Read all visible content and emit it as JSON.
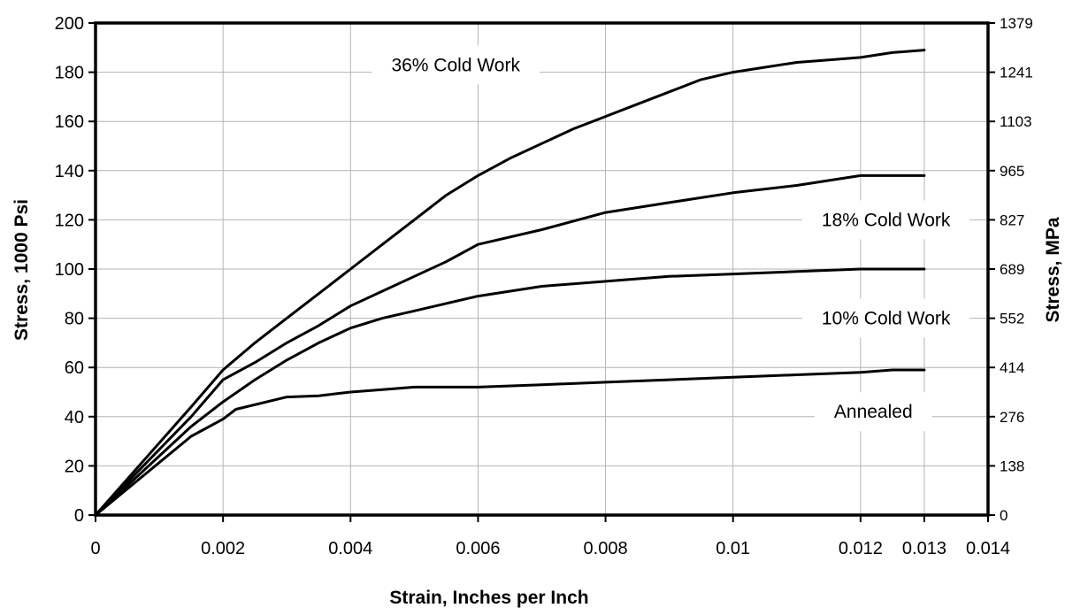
{
  "chart_data": {
    "type": "line",
    "xlabel": "Strain, Inches per Inch",
    "ylabel": "Stress, 1000 Psi",
    "y2label": "Stress, MPa",
    "xlim": [
      0,
      0.014
    ],
    "ylim": [
      0,
      200
    ],
    "grid": true,
    "x_ticks": [
      "0",
      "0.002",
      "0.004",
      "0.006",
      "0.008",
      "0.01",
      "0.012",
      "0.013",
      "0.014"
    ],
    "x_tick_values": [
      0,
      0.002,
      0.004,
      0.006,
      0.008,
      0.01,
      0.012,
      0.013,
      0.014
    ],
    "y_ticks": [
      "0",
      "20",
      "40",
      "60",
      "80",
      "100",
      "120",
      "140",
      "160",
      "180",
      "200"
    ],
    "y_tick_values": [
      0,
      20,
      40,
      60,
      80,
      100,
      120,
      140,
      160,
      180,
      200
    ],
    "y2_ticks": [
      "0",
      "138",
      "276",
      "414",
      "552",
      "689",
      "827",
      "965",
      "1103",
      "1241",
      "1379"
    ],
    "series": [
      {
        "name": "36% Cold Work",
        "label_at": [
          0.00565,
          183
        ],
        "points": [
          [
            0,
            0
          ],
          [
            0.0015,
            44
          ],
          [
            0.002,
            59
          ],
          [
            0.0025,
            70
          ],
          [
            0.003,
            80
          ],
          [
            0.0035,
            90
          ],
          [
            0.004,
            100
          ],
          [
            0.0045,
            110
          ],
          [
            0.005,
            120
          ],
          [
            0.0055,
            130
          ],
          [
            0.006,
            138
          ],
          [
            0.0065,
            145
          ],
          [
            0.007,
            151
          ],
          [
            0.0075,
            157
          ],
          [
            0.008,
            162
          ],
          [
            0.0085,
            167
          ],
          [
            0.009,
            172
          ],
          [
            0.0095,
            177
          ],
          [
            0.01,
            180
          ],
          [
            0.0105,
            182
          ],
          [
            0.011,
            184
          ],
          [
            0.0115,
            185
          ],
          [
            0.012,
            186
          ],
          [
            0.0125,
            188
          ],
          [
            0.013,
            189
          ]
        ]
      },
      {
        "name": "18% Cold Work",
        "label_at": [
          0.0124,
          120
        ],
        "points": [
          [
            0,
            0
          ],
          [
            0.0015,
            40
          ],
          [
            0.002,
            55
          ],
          [
            0.0025,
            62
          ],
          [
            0.003,
            70
          ],
          [
            0.0035,
            77
          ],
          [
            0.004,
            85
          ],
          [
            0.0045,
            91
          ],
          [
            0.005,
            97
          ],
          [
            0.0055,
            103
          ],
          [
            0.006,
            110
          ],
          [
            0.007,
            116
          ],
          [
            0.008,
            123
          ],
          [
            0.009,
            127
          ],
          [
            0.01,
            131
          ],
          [
            0.011,
            134
          ],
          [
            0.012,
            138
          ],
          [
            0.013,
            138
          ]
        ]
      },
      {
        "name": "10% Cold Work",
        "label_at": [
          0.0124,
          80
        ],
        "points": [
          [
            0,
            0
          ],
          [
            0.0015,
            36
          ],
          [
            0.002,
            46
          ],
          [
            0.0025,
            55
          ],
          [
            0.003,
            63
          ],
          [
            0.0035,
            70
          ],
          [
            0.004,
            76
          ],
          [
            0.0045,
            80
          ],
          [
            0.005,
            83
          ],
          [
            0.0055,
            86
          ],
          [
            0.006,
            89
          ],
          [
            0.007,
            93
          ],
          [
            0.008,
            95
          ],
          [
            0.009,
            97
          ],
          [
            0.01,
            98
          ],
          [
            0.011,
            99
          ],
          [
            0.012,
            100
          ],
          [
            0.013,
            100
          ]
        ]
      },
      {
        "name": "Annealed",
        "label_at": [
          0.0122,
          42
        ],
        "points": [
          [
            0,
            0
          ],
          [
            0.0015,
            32
          ],
          [
            0.002,
            39
          ],
          [
            0.0022,
            43
          ],
          [
            0.003,
            48
          ],
          [
            0.0035,
            48.5
          ],
          [
            0.004,
            50
          ],
          [
            0.0045,
            51
          ],
          [
            0.005,
            52
          ],
          [
            0.006,
            52
          ],
          [
            0.007,
            53
          ],
          [
            0.008,
            54
          ],
          [
            0.009,
            55
          ],
          [
            0.01,
            56
          ],
          [
            0.011,
            57
          ],
          [
            0.012,
            58
          ],
          [
            0.0125,
            59
          ],
          [
            0.013,
            59
          ]
        ]
      }
    ]
  }
}
